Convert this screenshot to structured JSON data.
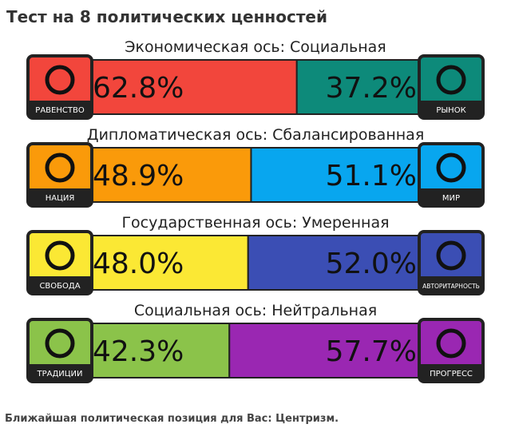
{
  "title": "Тест на 8 политических ценностей",
  "axes": [
    {
      "title": "Экономическая ось: Социальная",
      "left_name": "РАВЕНСТВО",
      "right_name": "РЫНОК",
      "values": [
        62.8,
        37.2
      ],
      "value_labels": [
        "62.8%",
        "37.2%"
      ],
      "colors": [
        "#f2463c",
        "#0d8a7a"
      ]
    },
    {
      "title": "Дипломатическая ось: Сбалансированная",
      "left_name": "НАЦИЯ",
      "right_name": "МИР",
      "values": [
        48.9,
        51.1
      ],
      "value_labels": [
        "48.9%",
        "51.1%"
      ],
      "colors": [
        "#fa9a0a",
        "#08a6ef"
      ]
    },
    {
      "title": "Государственная ось: Умеренная",
      "left_name": "СВОБОДА",
      "right_name": "АВТОРИТАРНОСТЬ",
      "values": [
        48.0,
        52.0
      ],
      "value_labels": [
        "48.0%",
        "52.0%"
      ],
      "colors": [
        "#fbe834",
        "#3b4eb4"
      ]
    },
    {
      "title": "Социальная ось: Нейтральная",
      "left_name": "ТРАДИЦИИ",
      "right_name": "ПРОГРЕСС",
      "values": [
        42.3,
        57.7
      ],
      "value_labels": [
        "42.3%",
        "57.7%"
      ],
      "colors": [
        "#8bc34a",
        "#9a27b2"
      ]
    }
  ],
  "footer": "Ближайшая политическая позиция для Вас: Центризм."
}
